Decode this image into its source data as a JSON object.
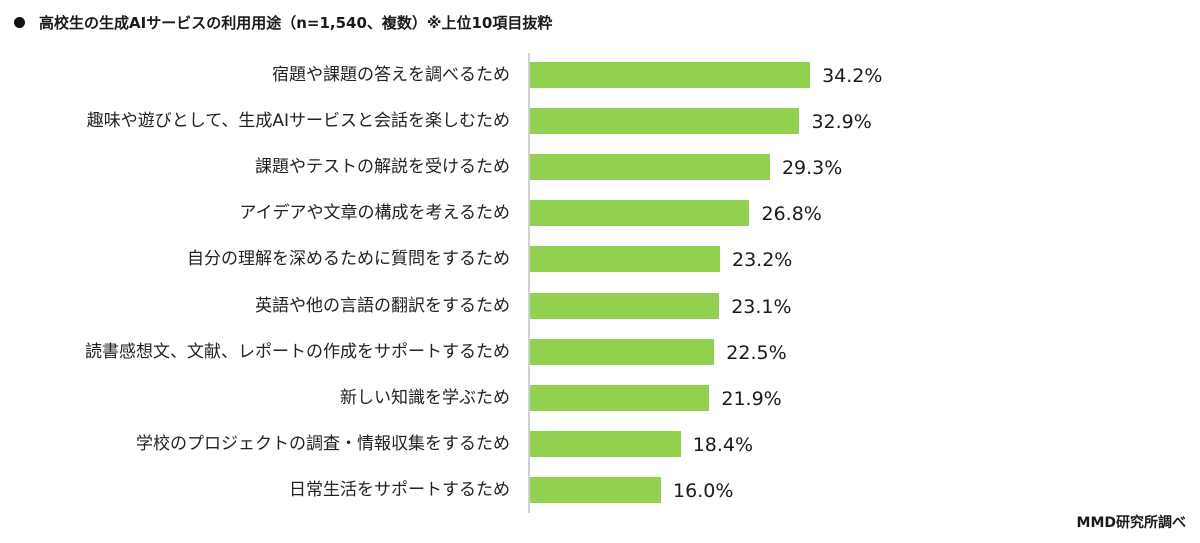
{
  "title": "高校生の生成AIサービスの利用用途（n=1,540、複数）※上位10項目抜粋",
  "source": "MMD研究所調べ",
  "colors": {
    "bar": "#92d050",
    "axis": "#d0d0d0",
    "text": "#1a1a1a"
  },
  "chart_data": {
    "type": "bar",
    "orientation": "horizontal",
    "title": "高校生の生成AIサービスの利用用途（n=1,540、複数）※上位10項目抜粋",
    "xlabel": "",
    "ylabel": "",
    "unit": "%",
    "grid": false,
    "legend": null,
    "categories": [
      "宿題や課題の答えを調べるため",
      "趣味や遊びとして、生成AIサービスと会話を楽しむため",
      "課題やテストの解説を受けるため",
      "アイデアや文章の構成を考えるため",
      "自分の理解を深めるために質問をするため",
      "英語や他の言語の翻訳をするため",
      "読書感想文、文献、レポートの作成をサポートするため",
      "新しい知識を学ぶため",
      "学校のプロジェクトの調査・情報収集をするため",
      "日常生活をサポートするため"
    ],
    "values": [
      34.2,
      32.9,
      29.3,
      26.8,
      23.2,
      23.1,
      22.5,
      21.9,
      18.4,
      16.0
    ],
    "value_labels": [
      "34.2%",
      "32.9%",
      "29.3%",
      "26.8%",
      "23.2%",
      "23.1%",
      "22.5%",
      "21.9%",
      "18.4%",
      "16.0%"
    ],
    "source": "MMD研究所調べ"
  }
}
